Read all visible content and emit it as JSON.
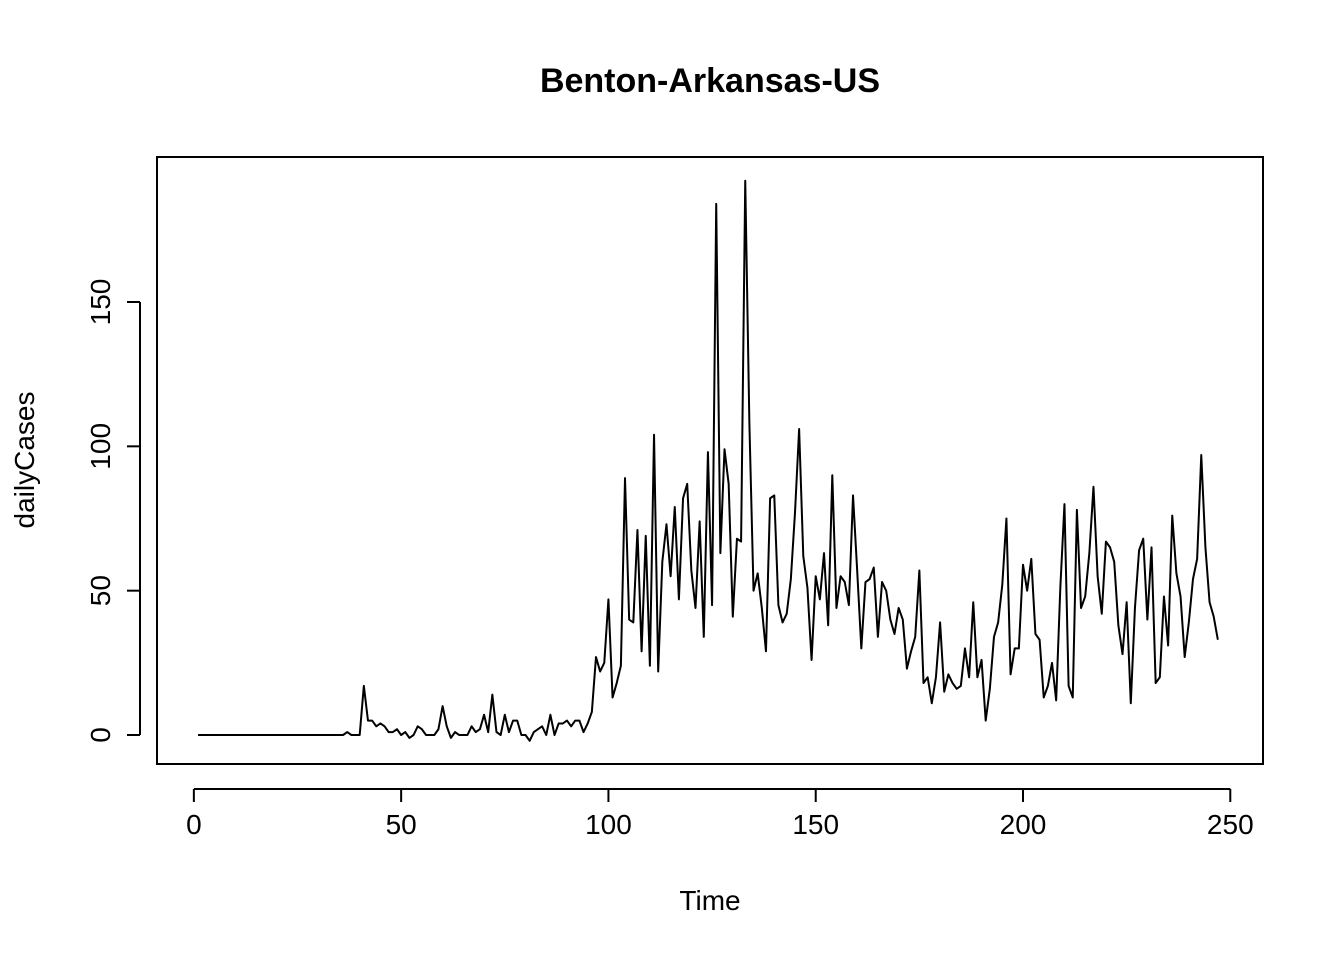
{
  "chart_data": {
    "type": "line",
    "title": "Benton-Arkansas-US",
    "xlabel": "Time",
    "ylabel": "dailyCases",
    "xlim": [
      1,
      248
    ],
    "ylim": [
      -3,
      192
    ],
    "xticks": [
      0,
      50,
      100,
      150,
      200,
      250
    ],
    "yticks": [
      0,
      50,
      100,
      150
    ],
    "grid": false,
    "legend": "none",
    "line_color": "#000000",
    "series": [
      {
        "x_start": 1,
        "values": [
          0,
          0,
          0,
          0,
          0,
          0,
          0,
          0,
          0,
          0,
          0,
          0,
          0,
          0,
          0,
          0,
          0,
          0,
          0,
          0,
          0,
          0,
          0,
          0,
          0,
          0,
          0,
          0,
          0,
          0,
          0,
          0,
          0,
          0,
          0,
          0,
          1,
          0,
          0,
          0,
          17,
          5,
          5,
          3,
          4,
          3,
          1,
          1,
          2,
          0,
          1,
          -1,
          0,
          3,
          2,
          0,
          0,
          0,
          2,
          10,
          3,
          -1,
          1,
          0,
          0,
          0,
          3,
          1,
          2,
          7,
          1,
          14,
          1,
          0,
          7,
          1,
          5,
          5,
          0,
          0,
          -2,
          1,
          2,
          3,
          0,
          7,
          0,
          4,
          4,
          5,
          3,
          5,
          5,
          1,
          4,
          8,
          27,
          22,
          25,
          47,
          13,
          18,
          24,
          89,
          40,
          39,
          71,
          29,
          69,
          24,
          104,
          22,
          60,
          73,
          55,
          79,
          47,
          82,
          87,
          57,
          44,
          74,
          34,
          98,
          45,
          184,
          63,
          99,
          87,
          41,
          68,
          67,
          192,
          108,
          50,
          56,
          44,
          29,
          82,
          83,
          45,
          39,
          42,
          54,
          77,
          106,
          62,
          51,
          26,
          55,
          47,
          63,
          38,
          90,
          44,
          55,
          53,
          45,
          83,
          57,
          30,
          53,
          54,
          58,
          34,
          53,
          50,
          40,
          35,
          44,
          40,
          23,
          29,
          34,
          57,
          18,
          20,
          11,
          20,
          39,
          15,
          21,
          18,
          16,
          17,
          30,
          20,
          46,
          20,
          26,
          5,
          16,
          34,
          39,
          52,
          75,
          21,
          30,
          30,
          59,
          50,
          61,
          35,
          33,
          13,
          17,
          25,
          12,
          51,
          80,
          17,
          13,
          78,
          44,
          48,
          63,
          86,
          55,
          42,
          67,
          65,
          60,
          38,
          28,
          46,
          11,
          44,
          64,
          68,
          40,
          65,
          18,
          20,
          48,
          31,
          76,
          56,
          48,
          27,
          39,
          54,
          61,
          97,
          65,
          46,
          41,
          33
        ]
      }
    ]
  }
}
